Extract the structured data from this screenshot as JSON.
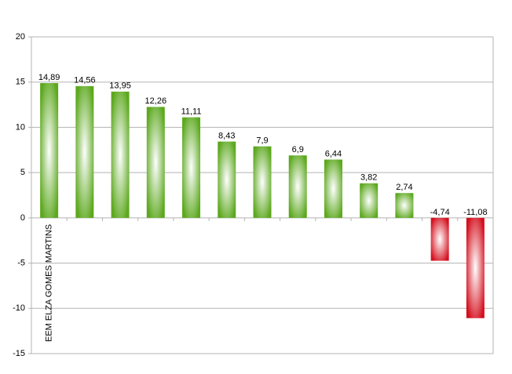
{
  "chart_data": {
    "type": "bar",
    "categories": [
      "EEM ELZA GOMES MARTINS",
      null,
      null,
      null,
      null,
      null,
      null,
      null,
      null,
      null,
      null,
      null,
      null
    ],
    "values": [
      14.89,
      14.56,
      13.95,
      12.26,
      11.11,
      8.43,
      7.9,
      6.9,
      6.44,
      3.82,
      2.74,
      -4.74,
      -11.08
    ],
    "value_labels": [
      "14,89",
      "14,56",
      "13,95",
      "12,26",
      "11,11",
      "8,43",
      "7,9",
      "6,9",
      "6,44",
      "3,82",
      "2,74",
      "-4,74",
      "-11,08"
    ],
    "color_positive": "#5ca81e",
    "color_negative": "#d4101e",
    "ylim": [
      -15,
      20
    ],
    "yticks": [
      -15,
      -10,
      -5,
      0,
      5,
      10,
      15,
      20
    ],
    "grid": true
  }
}
